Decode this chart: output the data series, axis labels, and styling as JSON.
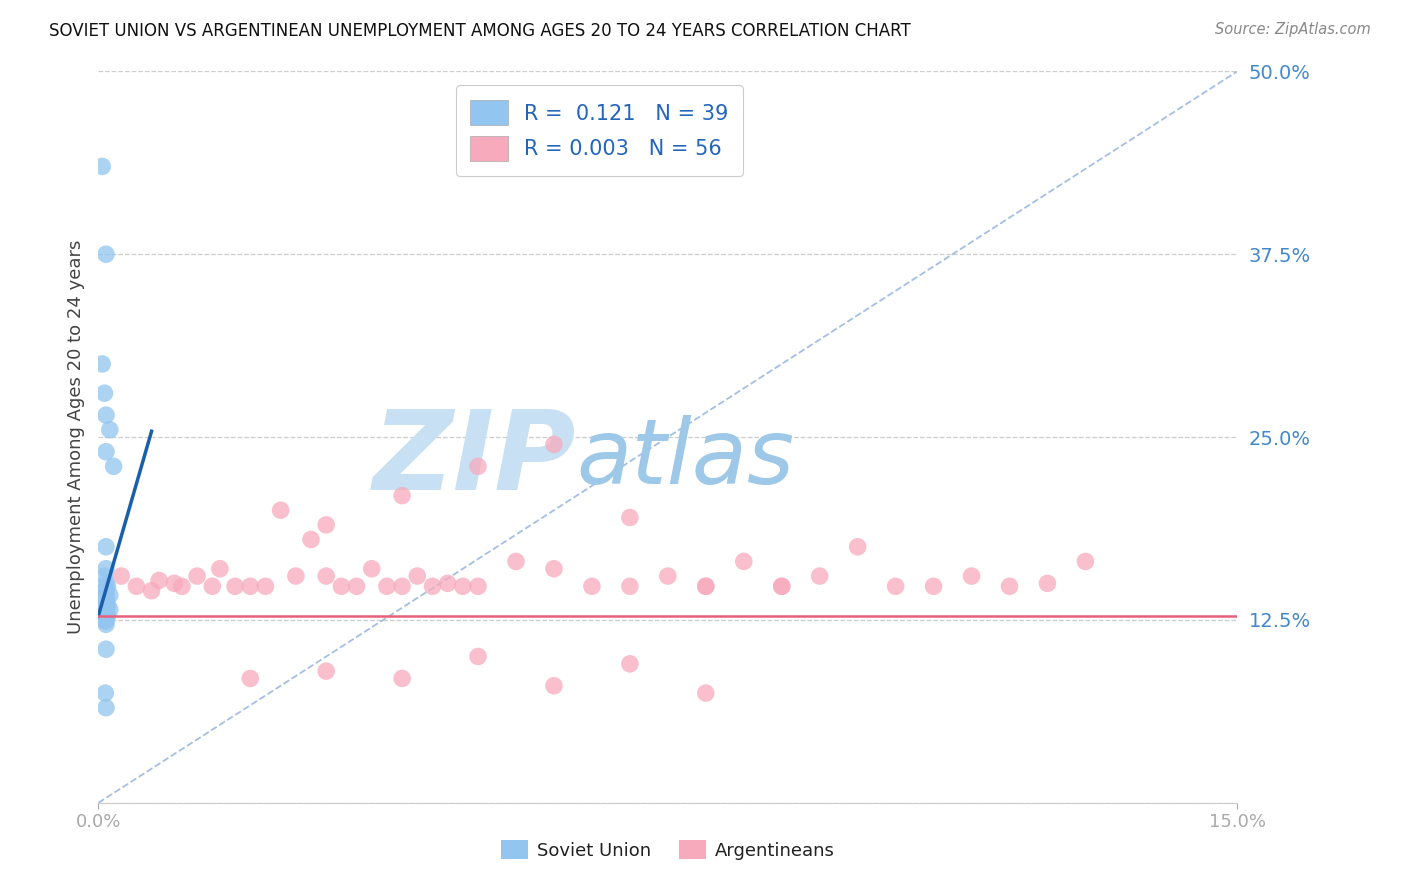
{
  "title": "SOVIET UNION VS ARGENTINEAN UNEMPLOYMENT AMONG AGES 20 TO 24 YEARS CORRELATION CHART",
  "source": "Source: ZipAtlas.com",
  "ylabel": "Unemployment Among Ages 20 to 24 years",
  "xlim": [
    0.0,
    0.15
  ],
  "ylim": [
    0.0,
    0.5
  ],
  "xticks": [
    0.0,
    0.15
  ],
  "xticklabels": [
    "0.0%",
    "15.0%"
  ],
  "ytick_vals": [
    0.0,
    0.125,
    0.25,
    0.375,
    0.5
  ],
  "yticklabels": [
    "",
    "12.5%",
    "25.0%",
    "37.5%",
    "50.0%"
  ],
  "soviet_color": "#92c5f0",
  "arg_color": "#f7aabc",
  "soviet_line_color": "#1a5faa",
  "arg_line_color": "#e8607a",
  "diag_line_color": "#9ab8e0",
  "R_soviet": 0.121,
  "N_soviet": 39,
  "R_arg": 0.003,
  "N_arg": 56,
  "background_color": "#ffffff",
  "grid_color": "#cccccc",
  "ytick_color": "#4488cc",
  "xtick_color": "#333333",
  "soviet_x": [
    0.0005,
    0.001,
    0.0005,
    0.0008,
    0.001,
    0.0015,
    0.001,
    0.002,
    0.001,
    0.001,
    0.0008,
    0.001,
    0.0012,
    0.001,
    0.0008,
    0.001,
    0.0015,
    0.001,
    0.0009,
    0.001,
    0.001,
    0.0008,
    0.001,
    0.0012,
    0.001,
    0.001,
    0.0015,
    0.001,
    0.0008,
    0.001,
    0.0012,
    0.001,
    0.001,
    0.0008,
    0.001,
    0.001,
    0.001,
    0.0009,
    0.001
  ],
  "soviet_y": [
    0.435,
    0.375,
    0.3,
    0.28,
    0.265,
    0.255,
    0.24,
    0.23,
    0.175,
    0.16,
    0.155,
    0.15,
    0.148,
    0.146,
    0.144,
    0.143,
    0.142,
    0.141,
    0.14,
    0.139,
    0.138,
    0.137,
    0.136,
    0.135,
    0.134,
    0.133,
    0.132,
    0.131,
    0.13,
    0.129,
    0.128,
    0.127,
    0.126,
    0.125,
    0.124,
    0.122,
    0.105,
    0.075,
    0.065
  ],
  "arg_x": [
    0.003,
    0.005,
    0.007,
    0.008,
    0.01,
    0.011,
    0.013,
    0.015,
    0.016,
    0.018,
    0.02,
    0.022,
    0.024,
    0.026,
    0.028,
    0.03,
    0.032,
    0.034,
    0.036,
    0.038,
    0.04,
    0.042,
    0.044,
    0.046,
    0.048,
    0.05,
    0.055,
    0.06,
    0.065,
    0.07,
    0.075,
    0.08,
    0.085,
    0.09,
    0.095,
    0.1,
    0.105,
    0.11,
    0.115,
    0.12,
    0.125,
    0.05,
    0.06,
    0.07,
    0.03,
    0.04,
    0.08,
    0.09,
    0.05,
    0.07,
    0.02,
    0.03,
    0.04,
    0.06,
    0.08,
    0.13
  ],
  "arg_y": [
    0.155,
    0.148,
    0.145,
    0.152,
    0.15,
    0.148,
    0.155,
    0.148,
    0.16,
    0.148,
    0.148,
    0.148,
    0.2,
    0.155,
    0.18,
    0.155,
    0.148,
    0.148,
    0.16,
    0.148,
    0.148,
    0.155,
    0.148,
    0.15,
    0.148,
    0.148,
    0.165,
    0.16,
    0.148,
    0.148,
    0.155,
    0.148,
    0.165,
    0.148,
    0.155,
    0.175,
    0.148,
    0.148,
    0.155,
    0.148,
    0.15,
    0.23,
    0.245,
    0.195,
    0.19,
    0.21,
    0.148,
    0.148,
    0.1,
    0.095,
    0.085,
    0.09,
    0.085,
    0.08,
    0.075,
    0.165
  ],
  "arg_trend_y": 0.128,
  "sov_trend_slope": 18.0,
  "sov_trend_intercept": 0.128,
  "sov_trend_xmax": 0.007
}
